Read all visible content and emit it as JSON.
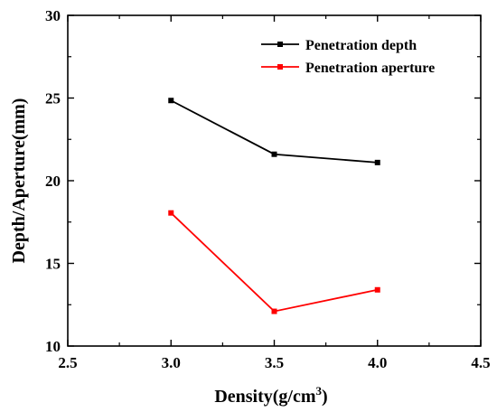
{
  "chart_data": {
    "type": "line",
    "xlabel": "Density(g/cm",
    "xlabel_superscript": "3",
    "xlabel_suffix": ")",
    "ylabel": "Depth/Aperture(mm)",
    "xlim": [
      2.5,
      4.5
    ],
    "ylim": [
      10,
      30
    ],
    "xticks": [
      "2.5",
      "3.0",
      "3.5",
      "4.0",
      "4.5"
    ],
    "yticks": [
      "10",
      "15",
      "20",
      "25",
      "30"
    ],
    "grid": false,
    "legend_position": "top-right",
    "x": [
      3.0,
      3.5,
      4.0
    ],
    "series": [
      {
        "name": "Penetration depth",
        "color": "#000000",
        "marker": "square",
        "values": [
          24.85,
          21.6,
          21.1
        ]
      },
      {
        "name": "Penetration aperture",
        "color": "#ff0000",
        "marker": "square",
        "values": [
          18.05,
          12.1,
          13.4
        ]
      }
    ]
  }
}
